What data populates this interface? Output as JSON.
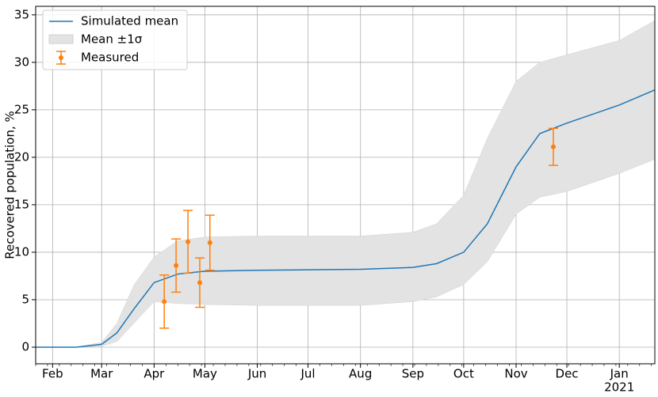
{
  "chart_data": {
    "type": "line",
    "ylabel": "Recovered population, %",
    "x": [
      "2020-01-22",
      "2020-02-15",
      "2020-03-01",
      "2020-03-10",
      "2020-03-20",
      "2020-04-01",
      "2020-04-15",
      "2020-05-01",
      "2020-06-01",
      "2020-07-01",
      "2020-08-01",
      "2020-09-01",
      "2020-09-15",
      "2020-10-01",
      "2020-10-15",
      "2020-11-01",
      "2020-11-15",
      "2020-12-01",
      "2021-01-01",
      "2021-01-22"
    ],
    "series": [
      {
        "name": "Simulated mean",
        "color": "#1f77b4",
        "values": [
          0,
          0,
          0.3,
          1.5,
          4.0,
          6.8,
          7.7,
          8.0,
          8.1,
          8.15,
          8.2,
          8.4,
          8.8,
          10.0,
          13.0,
          19.0,
          22.5,
          23.6,
          25.5,
          27.1
        ]
      }
    ],
    "band": {
      "name": "Mean ±1σ",
      "color": "#e3e3e3",
      "lower": [
        0,
        0,
        0.1,
        0.6,
        2.5,
        4.8,
        4.6,
        4.5,
        4.4,
        4.4,
        4.4,
        4.8,
        5.3,
        6.6,
        9.0,
        14.0,
        15.8,
        16.4,
        18.3,
        19.8
      ],
      "upper": [
        0,
        0,
        0.5,
        2.5,
        6.5,
        9.5,
        11.2,
        11.6,
        11.7,
        11.7,
        11.7,
        12.1,
        13.0,
        16.0,
        22.0,
        28.0,
        30.0,
        30.8,
        32.3,
        34.4
      ]
    },
    "measured": {
      "name": "Measured",
      "color": "#ff7f0e",
      "x": [
        "2020-04-07",
        "2020-04-14",
        "2020-04-21",
        "2020-04-28",
        "2020-05-04",
        "2020-11-23"
      ],
      "values": [
        4.8,
        8.6,
        11.1,
        6.8,
        11.0,
        21.1
      ],
      "errors": [
        2.8,
        2.8,
        3.3,
        2.6,
        2.9,
        1.95
      ]
    },
    "xlim": [
      "2020-01-22",
      "2021-01-22"
    ],
    "xticks": [
      {
        "value": "2020-02-01",
        "label": "Feb"
      },
      {
        "value": "2020-03-01",
        "label": "Mar"
      },
      {
        "value": "2020-04-01",
        "label": "Apr"
      },
      {
        "value": "2020-05-01",
        "label": "May"
      },
      {
        "value": "2020-06-01",
        "label": "Jun"
      },
      {
        "value": "2020-07-01",
        "label": "Jul"
      },
      {
        "value": "2020-08-01",
        "label": "Aug"
      },
      {
        "value": "2020-09-01",
        "label": "Sep"
      },
      {
        "value": "2020-10-01",
        "label": "Oct"
      },
      {
        "value": "2020-11-01",
        "label": "Nov"
      },
      {
        "value": "2020-12-01",
        "label": "Dec"
      },
      {
        "value": "2021-01-01",
        "label": "Jan",
        "sublabel": "2021"
      }
    ],
    "ylim": [
      -1.75,
      35.9
    ],
    "yticks": [
      0,
      5,
      10,
      15,
      20,
      25,
      30,
      35
    ],
    "grid": true,
    "legend": "upper left"
  }
}
